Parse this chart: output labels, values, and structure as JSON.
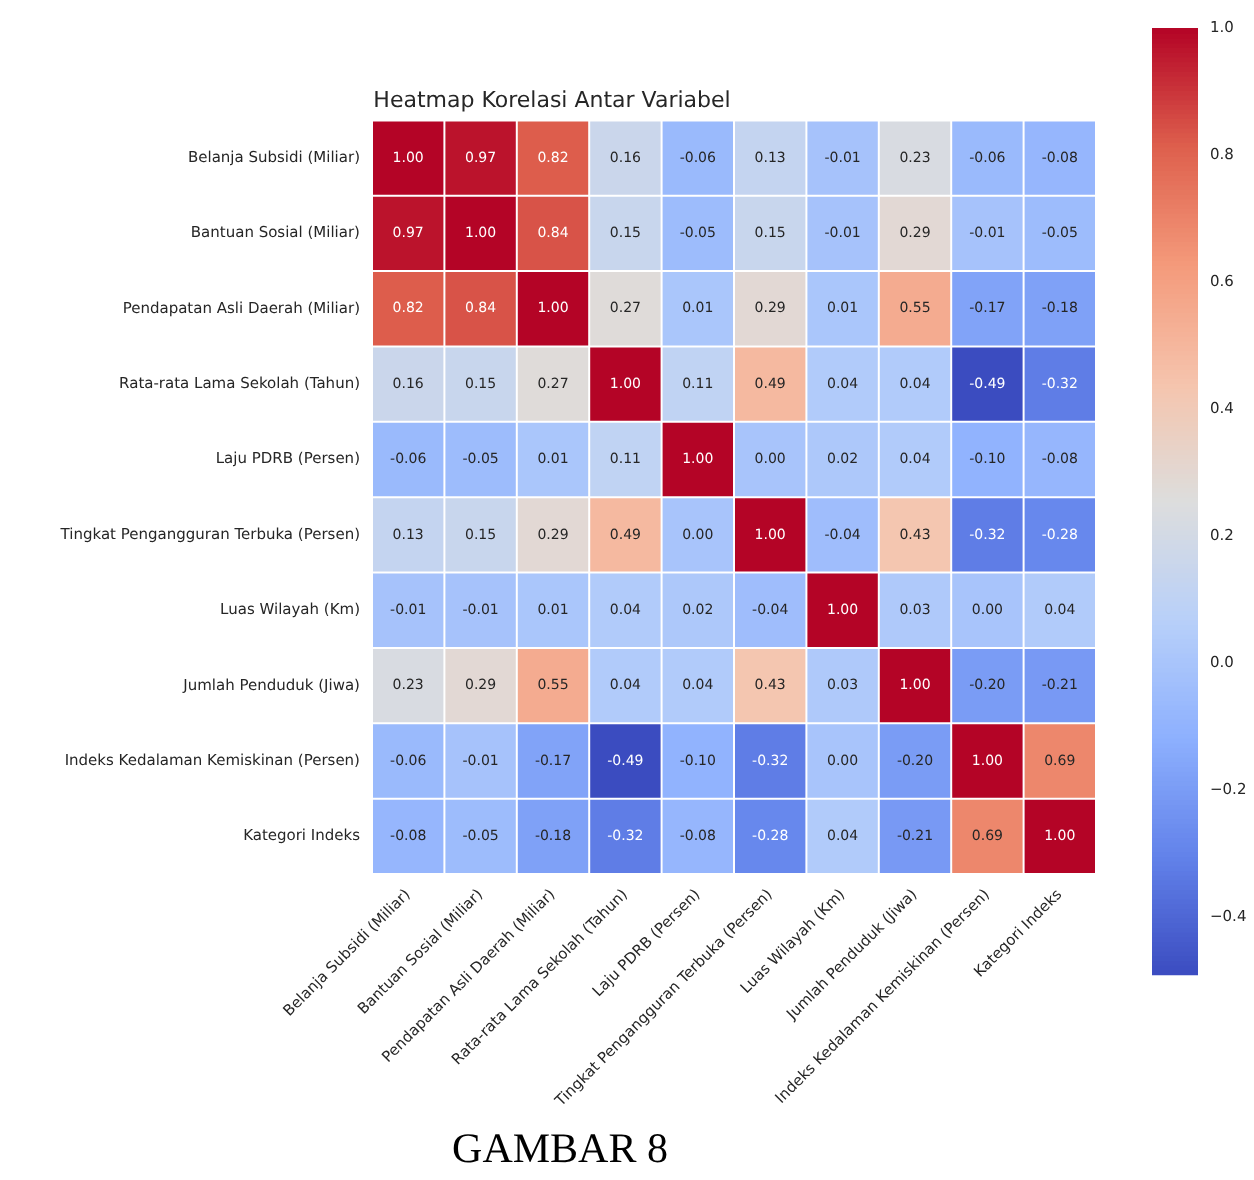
{
  "chart_data": {
    "type": "heatmap",
    "title": "Heatmap Korelasi Antar Variabel",
    "categories": [
      "Belanja Subsidi (Miliar)",
      "Bantuan Sosial (Miliar)",
      "Pendapatan Asli Daerah (Miliar)",
      "Rata-rata Lama Sekolah (Tahun)",
      "Laju PDRB (Persen)",
      "Tingkat Pengangguran Terbuka (Persen)",
      "Luas Wilayah (Km)",
      "Jumlah Penduduk (Jiwa)",
      "Indeks Kedalaman Kemiskinan (Persen)",
      "Kategori Indeks"
    ],
    "y_categories": [
      "Belanja Subsidi (Miliar)",
      "Bantuan Sosial (Miliar)",
      "Pendapatan Asli Daerah (Miliar)",
      "Rata-rata Lama Sekolah (Tahun)",
      "Laju PDRB (Persen)",
      "Tingkat Pengangguran Terbuka (Persen)",
      "Luas Wilayah (Km)",
      "Jumlah Penduduk (Jiwa)",
      "Indeks Kedalaman Kemiskinan (Persen)",
      "Kategori Indeks"
    ],
    "cells": [
      [
        1.0,
        0.97,
        0.82,
        0.16,
        -0.06,
        0.13,
        -0.01,
        0.23,
        -0.06,
        -0.08
      ],
      [
        0.97,
        1.0,
        0.84,
        0.15,
        -0.05,
        0.15,
        -0.01,
        0.29,
        -0.01,
        -0.05
      ],
      [
        0.82,
        0.84,
        1.0,
        0.27,
        0.01,
        0.29,
        0.01,
        0.55,
        -0.17,
        -0.18
      ],
      [
        0.16,
        0.15,
        0.27,
        1.0,
        0.11,
        0.49,
        0.04,
        0.04,
        -0.49,
        -0.32
      ],
      [
        -0.06,
        -0.05,
        0.01,
        0.11,
        1.0,
        0.0,
        0.02,
        0.04,
        -0.1,
        -0.08
      ],
      [
        0.13,
        0.15,
        0.29,
        0.49,
        0.0,
        1.0,
        -0.04,
        0.43,
        -0.32,
        -0.28
      ],
      [
        -0.01,
        -0.01,
        0.01,
        0.04,
        0.02,
        -0.04,
        1.0,
        0.03,
        0.0,
        0.04
      ],
      [
        0.23,
        0.29,
        0.55,
        0.04,
        0.04,
        0.43,
        0.03,
        1.0,
        -0.2,
        -0.21
      ],
      [
        -0.06,
        -0.01,
        -0.17,
        -0.49,
        -0.1,
        -0.32,
        0.0,
        -0.2,
        1.0,
        0.69
      ],
      [
        -0.08,
        -0.05,
        -0.18,
        -0.32,
        -0.08,
        -0.28,
        0.04,
        -0.21,
        0.69,
        1.0
      ]
    ],
    "cell_labels": [
      [
        "1.00",
        "0.97",
        "0.82",
        "0.16",
        "-0.06",
        "0.13",
        "-0.01",
        "0.23",
        "-0.06",
        "-0.08"
      ],
      [
        "0.97",
        "1.00",
        "0.84",
        "0.15",
        "-0.05",
        "0.15",
        "-0.01",
        "0.29",
        "-0.01",
        "-0.05"
      ],
      [
        "0.82",
        "0.84",
        "1.00",
        "0.27",
        "0.01",
        "0.29",
        "0.01",
        "0.55",
        "-0.17",
        "-0.18"
      ],
      [
        "0.16",
        "0.15",
        "0.27",
        "1.00",
        "0.11",
        "0.49",
        "0.04",
        "0.04",
        "-0.49",
        "-0.32"
      ],
      [
        "-0.06",
        "-0.05",
        "0.01",
        "0.11",
        "1.00",
        "0.00",
        "0.02",
        "0.04",
        "-0.10",
        "-0.08"
      ],
      [
        "0.13",
        "0.15",
        "0.29",
        "0.49",
        "0.00",
        "1.00",
        "-0.04",
        "0.43",
        "-0.32",
        "-0.28"
      ],
      [
        "-0.01",
        "-0.01",
        "0.01",
        "0.04",
        "0.02",
        "-0.04",
        "1.00",
        "0.03",
        "0.00",
        "0.04"
      ],
      [
        "0.23",
        "0.29",
        "0.55",
        "0.04",
        "0.04",
        "0.43",
        "0.03",
        "1.00",
        "-0.20",
        "-0.21"
      ],
      [
        "-0.06",
        "-0.01",
        "-0.17",
        "-0.49",
        "-0.10",
        "-0.32",
        "0.00",
        "-0.20",
        "1.00",
        "0.69"
      ],
      [
        "-0.08",
        "-0.05",
        "-0.18",
        "-0.32",
        "-0.08",
        "-0.28",
        "0.04",
        "-0.21",
        "0.69",
        "1.00"
      ]
    ],
    "clim": [
      -0.49,
      1.0
    ],
    "cticks": [
      {
        "value": -0.4,
        "label": "−0.4"
      },
      {
        "value": -0.2,
        "label": "−0.2"
      },
      {
        "value": 0,
        "label": "0.0"
      },
      {
        "value": 0.2,
        "label": "0.2"
      },
      {
        "value": 0.4,
        "label": "0.4"
      },
      {
        "value": 0.6,
        "label": "0.6"
      },
      {
        "value": 0.8,
        "label": "0.8"
      },
      {
        "value": 1,
        "label": "1.0"
      }
    ],
    "annotations": [
      "GAMBAR 8"
    ]
  }
}
